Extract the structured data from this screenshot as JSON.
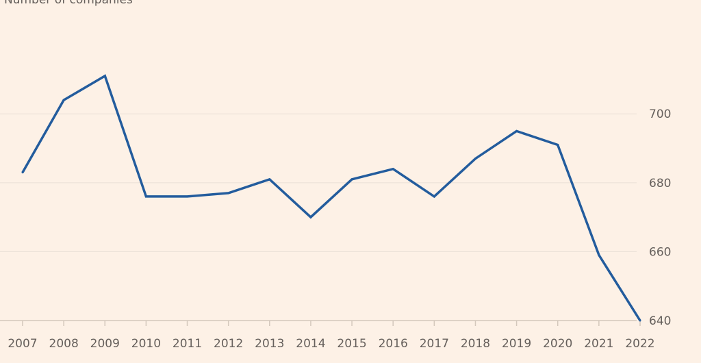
{
  "chart_data": {
    "type": "line",
    "subtitle": "Number of companies",
    "xlabel": "",
    "ylabel": "",
    "x": [
      "2007",
      "2008",
      "2009",
      "2010",
      "2011",
      "2012",
      "2013",
      "2014",
      "2015",
      "2016",
      "2017",
      "2018",
      "2019",
      "2020",
      "2021",
      "2022"
    ],
    "series": [
      {
        "values": [
          683,
          704,
          711,
          676,
          676,
          677,
          681,
          670,
          681,
          684,
          676,
          687,
          695,
          691,
          659,
          640
        ]
      }
    ],
    "ylim": [
      640,
      718
    ],
    "yticks": [
      640,
      660,
      680,
      700
    ],
    "y_axis_side": "right",
    "grid": true,
    "line_color": "#235c9d",
    "grid_color": "#eae0d6",
    "baseline_color": "#d4c8bc",
    "text_color": "#66605c",
    "background": "#fdf1e6"
  }
}
